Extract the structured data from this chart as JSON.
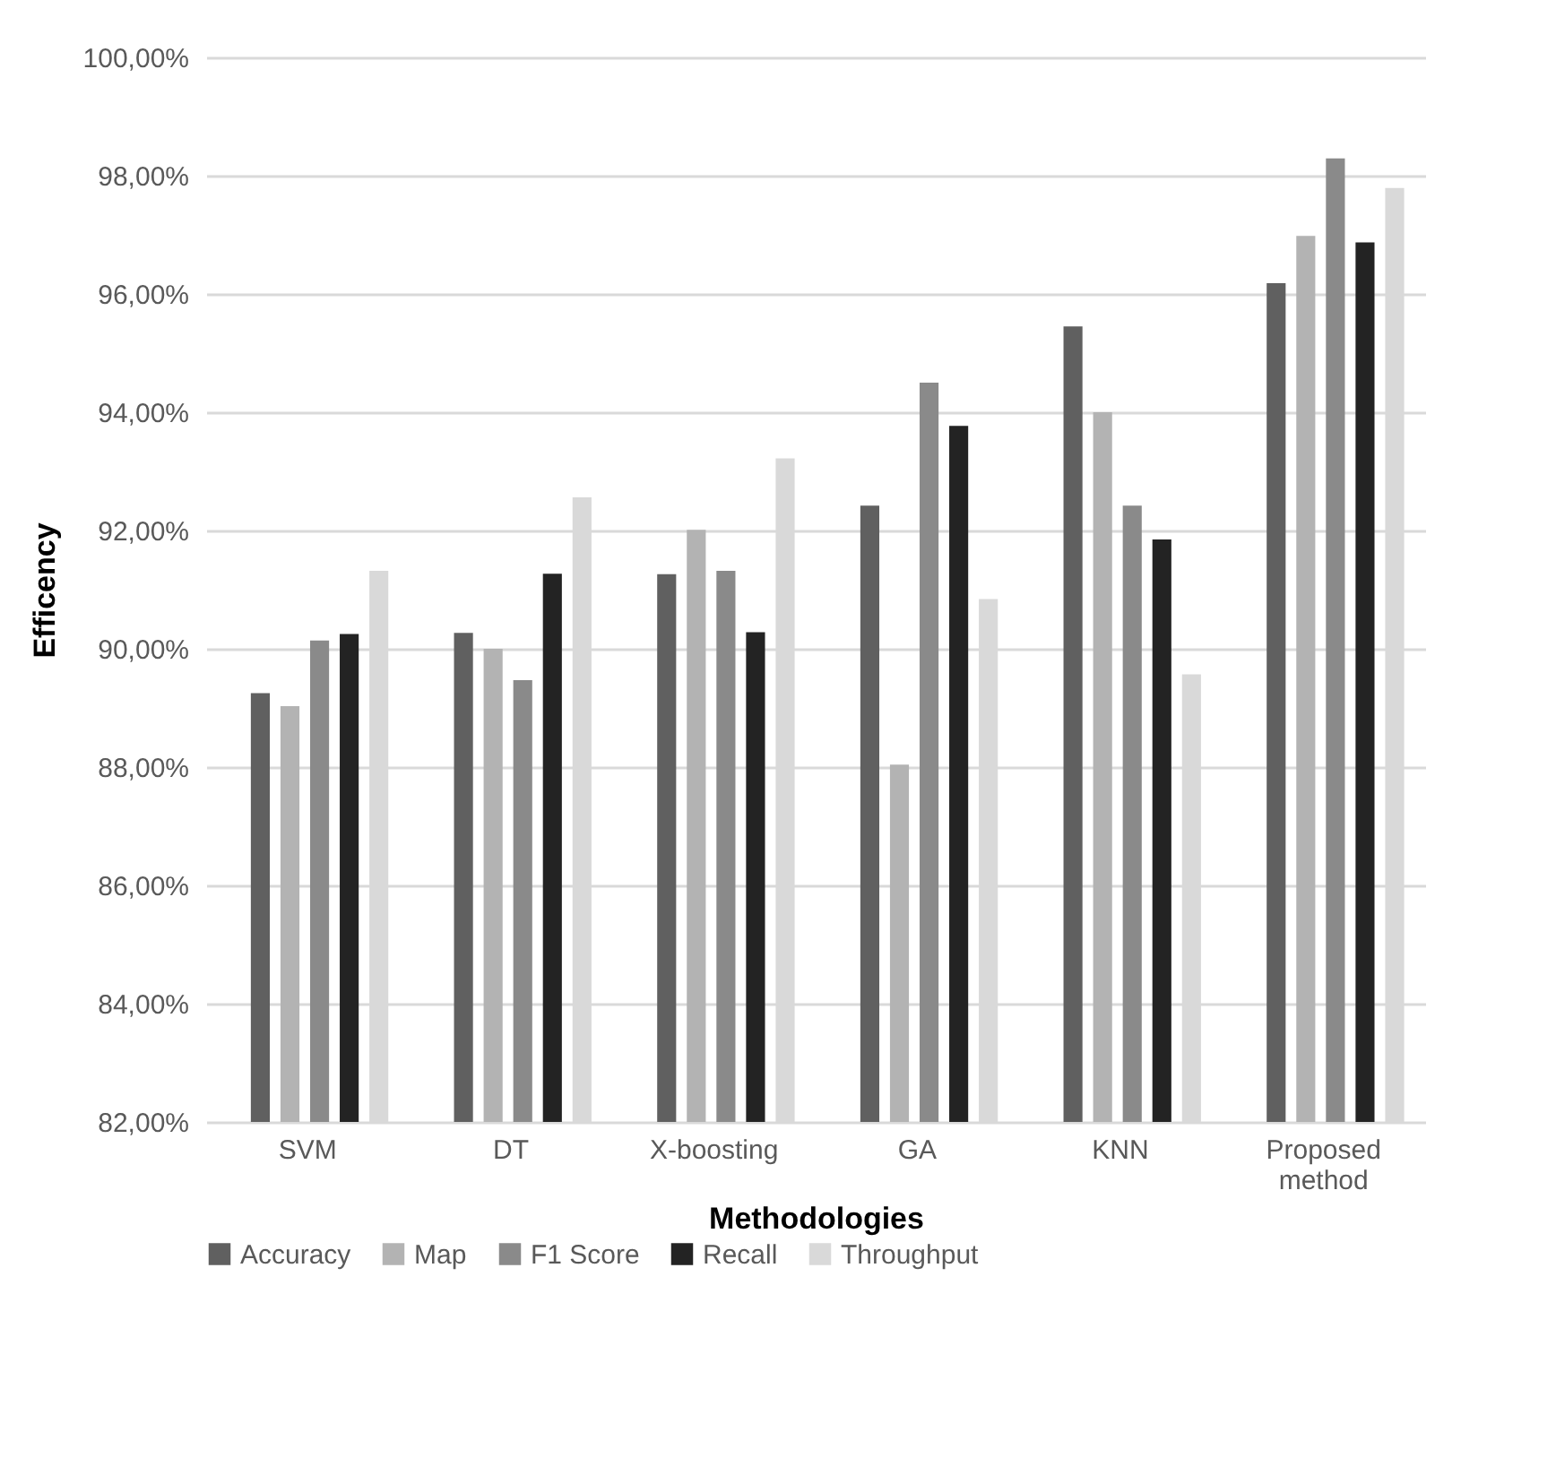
{
  "chart_data": {
    "type": "bar",
    "xlabel": "Methodologies",
    "ylabel": "Efficency",
    "categories": [
      "SVM",
      "DT",
      "X-boosting",
      "GA",
      "KNN",
      "Proposed method"
    ],
    "series": [
      {
        "name": "Accuracy",
        "color": "#606060",
        "values": [
          89.25,
          90.27,
          91.26,
          92.42,
          95.45,
          96.18
        ]
      },
      {
        "name": "Map",
        "color": "#b3b3b3",
        "values": [
          89.03,
          90.0,
          92.01,
          88.04,
          94.0,
          96.98
        ]
      },
      {
        "name": "F1 Score",
        "color": "#8a8a8a",
        "values": [
          90.14,
          89.47,
          91.32,
          94.5,
          92.42,
          98.29
        ]
      },
      {
        "name": "Recall",
        "color": "#232323",
        "values": [
          90.25,
          91.27,
          90.28,
          93.77,
          91.85,
          96.87
        ]
      },
      {
        "name": "Throughput",
        "color": "#d9d9d9",
        "values": [
          91.32,
          92.56,
          93.22,
          90.84,
          89.57,
          97.79
        ]
      }
    ],
    "ylim": [
      82,
      100
    ],
    "yticks": [
      {
        "value": 82,
        "label": "82,00%"
      },
      {
        "value": 84,
        "label": "84,00%"
      },
      {
        "value": 86,
        "label": "86,00%"
      },
      {
        "value": 88,
        "label": "88,00%"
      },
      {
        "value": 90,
        "label": "90,00%"
      },
      {
        "value": 92,
        "label": "92,00%"
      },
      {
        "value": 94,
        "label": "94,00%"
      },
      {
        "value": 96,
        "label": "96,00%"
      },
      {
        "value": 98,
        "label": "98,00%"
      },
      {
        "value": 100,
        "label": "100,00%"
      }
    ],
    "grid": "y",
    "legend": "bottom"
  }
}
